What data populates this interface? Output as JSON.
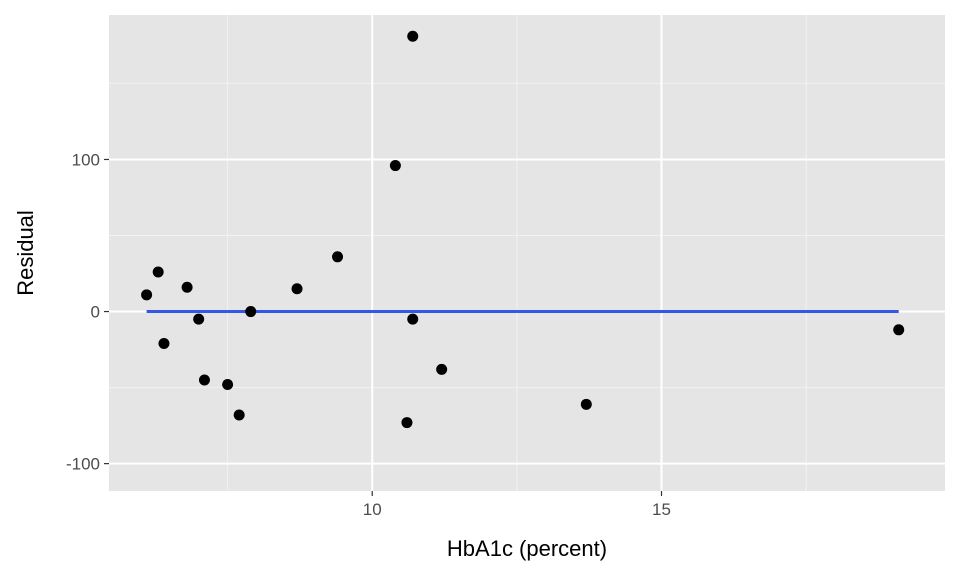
{
  "chart_data": {
    "type": "scatter",
    "title": "",
    "xlabel": "HbA1c (percent)",
    "ylabel": "Residual",
    "xlim": [
      5.45,
      19.9
    ],
    "ylim": [
      -118,
      195
    ],
    "grid": true,
    "background": "#e5e5e5",
    "x_major_ticks": [
      10,
      15
    ],
    "x_minor_ticks": [
      7.5,
      12.5,
      17.5
    ],
    "y_major_ticks": [
      -100,
      0,
      100
    ],
    "y_minor_ticks": [
      -50,
      50,
      150
    ],
    "x_tick_labels": [
      "10",
      "15"
    ],
    "y_tick_labels": [
      "-100",
      "0",
      "100"
    ],
    "points": [
      {
        "x": 6.1,
        "y": 11
      },
      {
        "x": 6.3,
        "y": 26
      },
      {
        "x": 6.4,
        "y": -21
      },
      {
        "x": 6.8,
        "y": 16
      },
      {
        "x": 7.0,
        "y": -5
      },
      {
        "x": 7.1,
        "y": -45
      },
      {
        "x": 7.5,
        "y": -48
      },
      {
        "x": 7.7,
        "y": -68
      },
      {
        "x": 7.9,
        "y": 0
      },
      {
        "x": 8.7,
        "y": 15
      },
      {
        "x": 9.4,
        "y": 36
      },
      {
        "x": 10.4,
        "y": 96
      },
      {
        "x": 10.6,
        "y": -73
      },
      {
        "x": 10.7,
        "y": 181
      },
      {
        "x": 10.7,
        "y": -5
      },
      {
        "x": 11.2,
        "y": -38
      },
      {
        "x": 13.7,
        "y": -61
      },
      {
        "x": 19.1,
        "y": -12
      }
    ],
    "reference_line": {
      "x": [
        6.1,
        19.1
      ],
      "y": 0,
      "color": "#3358e8"
    },
    "point_color": "#000000"
  }
}
